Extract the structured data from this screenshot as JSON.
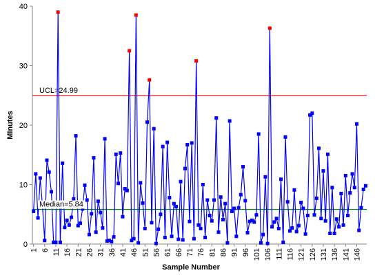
{
  "chart_data": {
    "type": "line",
    "x_label": "Sample Number",
    "y_label": "Minutes",
    "x": [
      1,
      2,
      3,
      4,
      5,
      6,
      7,
      8,
      9,
      10,
      11,
      12,
      13,
      14,
      15,
      16,
      17,
      18,
      19,
      20,
      21,
      22,
      23,
      24,
      25,
      26,
      27,
      28,
      29,
      30,
      31,
      32,
      33,
      34,
      35,
      36,
      37,
      38,
      39,
      40,
      41,
      42,
      43,
      44,
      45,
      46,
      47,
      48,
      49,
      50,
      51,
      52,
      53,
      54,
      55,
      56,
      57,
      58,
      59,
      60,
      61,
      62,
      63,
      64,
      65,
      66,
      67,
      68,
      69,
      70,
      71,
      72,
      73,
      74,
      75,
      76,
      77,
      78,
      79,
      80,
      81,
      82,
      83,
      84,
      85,
      86,
      87,
      88,
      89,
      90,
      91,
      92,
      93,
      94,
      95,
      96,
      97,
      98,
      99,
      100,
      101,
      102,
      103,
      104,
      105,
      106,
      107,
      108,
      109,
      110,
      111,
      112,
      113,
      114,
      115,
      116,
      117,
      118,
      119,
      120,
      121,
      122,
      123,
      124,
      125,
      126,
      127,
      128,
      129,
      130,
      131,
      132,
      133,
      134,
      135,
      136,
      137,
      138,
      139,
      140,
      141,
      142,
      143,
      144,
      145,
      146,
      147,
      148,
      149,
      150
    ],
    "series": [
      {
        "name": "Minutes",
        "color": "#0000ff",
        "outlier_color": "#ff0000",
        "values": [
          5.5,
          11.8,
          4.4,
          11.1,
          6.5,
          0.6,
          14.1,
          12.1,
          8.8,
          0.3,
          0.3,
          39.0,
          0.3,
          13.6,
          2.8,
          4.0,
          3.2,
          4.5,
          7.6,
          18.2,
          3.1,
          3.5,
          5.9,
          9.9,
          7.4,
          1.6,
          5.1,
          14.5,
          2.0,
          7.2,
          5.3,
          2.7,
          17.7,
          0.5,
          0.6,
          0.4,
          1.2,
          15.1,
          10.2,
          15.3,
          4.6,
          9.3,
          9.0,
          32.5,
          0.6,
          0.9,
          38.5,
          0.2,
          10.3,
          6.9,
          2.6,
          20.5,
          27.6,
          3.6,
          19.4,
          0.1,
          2.5,
          5.0,
          16.4,
          1.1,
          17.1,
          7.8,
          1.3,
          6.8,
          6.3,
          0.8,
          10.5,
          0.7,
          12.7,
          16.7,
          3.8,
          17.0,
          0.9,
          30.8,
          3.2,
          2.6,
          10.0,
          1.1,
          7.4,
          4.8,
          3.9,
          7.4,
          21.2,
          2.0,
          7.9,
          4.1,
          6.8,
          0.2,
          20.7,
          5.5,
          6.0,
          1.3,
          6.1,
          8.3,
          13.0,
          7.3,
          1.9,
          3.8,
          4.0,
          3.7,
          4.9,
          18.5,
          0.2,
          1.6,
          11.3,
          0.1,
          36.3,
          2.9,
          3.7,
          4.3,
          2.6,
          10.9,
          0.3,
          18.0,
          7.1,
          2.2,
          2.7,
          9.1,
          2.1,
          3.1,
          7.0,
          6.0,
          1.7,
          4.8,
          21.7,
          22.0,
          4.9,
          7.7,
          16.1,
          4.3,
          12.3,
          3.9,
          15.1,
          1.8,
          9.5,
          1.8,
          4.2,
          2.9,
          8.5,
          3.2,
          11.5,
          4.8,
          8.6,
          11.8,
          9.5,
          20.2,
          2.3,
          6.1,
          9.2,
          9.8
        ]
      }
    ],
    "ucl": 24.99,
    "ucl_label": "UCL=24.99",
    "ucl_color": "#ff0000",
    "median": 5.84,
    "median_label": "Median=5.84",
    "median_color": "#008000",
    "xlim": [
      0.5,
      150.5
    ],
    "xticks": [
      1,
      6,
      11,
      16,
      21,
      26,
      31,
      36,
      41,
      46,
      51,
      56,
      61,
      66,
      71,
      76,
      81,
      86,
      91,
      96,
      101,
      106,
      111,
      116,
      121,
      126,
      131,
      136,
      141,
      146
    ],
    "ylim": [
      0,
      40
    ],
    "yticks": [
      0,
      10,
      20,
      30,
      40
    ],
    "grid": false
  }
}
